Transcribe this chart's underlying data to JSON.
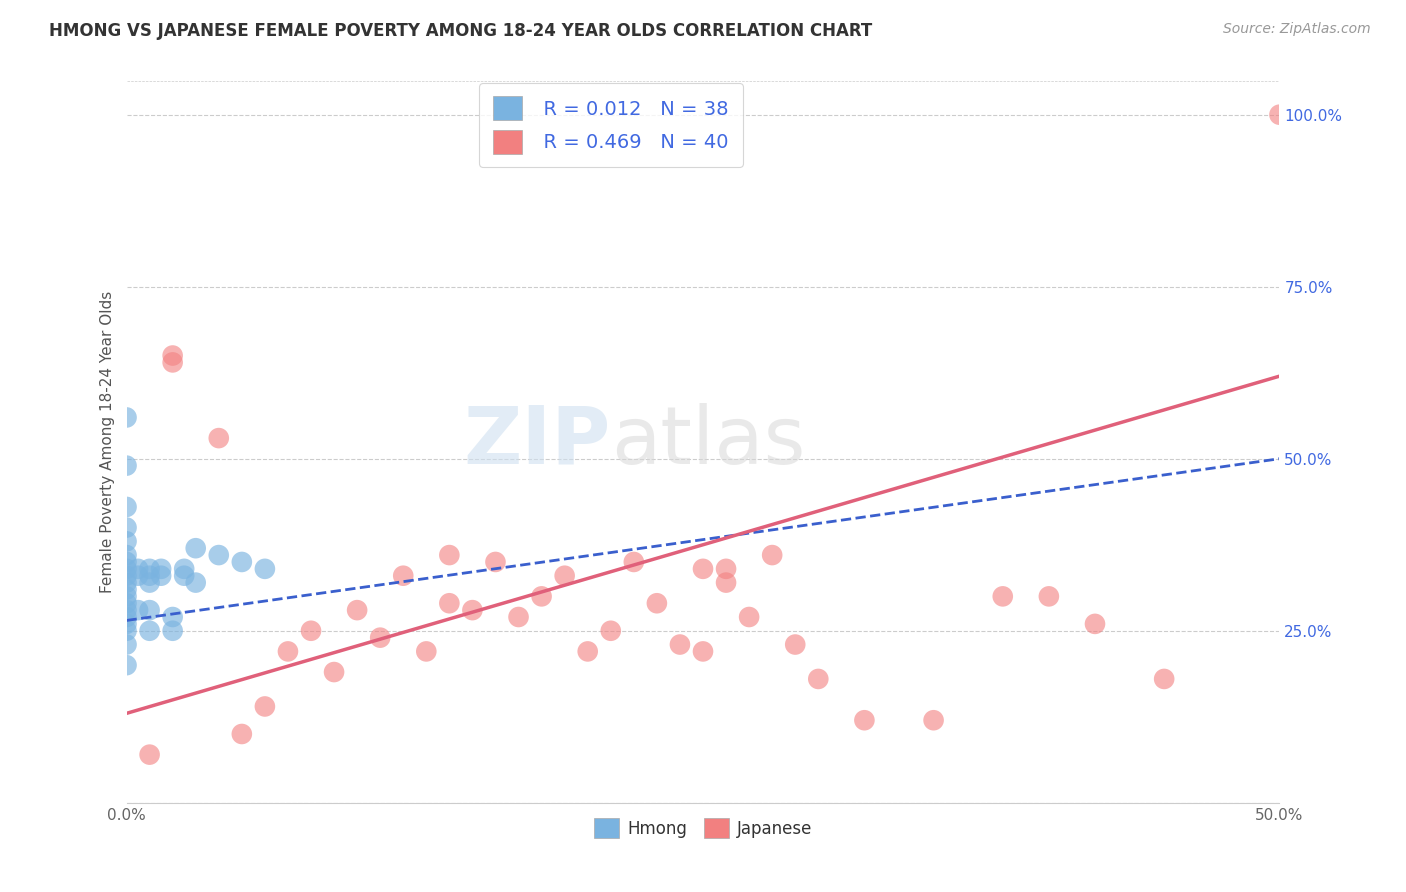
{
  "title": "HMONG VS JAPANESE FEMALE POVERTY AMONG 18-24 YEAR OLDS CORRELATION CHART",
  "source": "Source: ZipAtlas.com",
  "ylabel": "Female Poverty Among 18-24 Year Olds",
  "xmin": 0.0,
  "xmax": 0.5,
  "ymin": 0.0,
  "ymax": 1.05,
  "x_ticks": [
    0.0,
    0.1,
    0.2,
    0.3,
    0.4,
    0.5
  ],
  "x_tick_labels": [
    "0.0%",
    "",
    "",
    "",
    "",
    "50.0%"
  ],
  "y_ticks_right": [
    0.0,
    0.25,
    0.5,
    0.75,
    1.0
  ],
  "y_tick_labels_right": [
    "",
    "25.0%",
    "50.0%",
    "75.0%",
    "100.0%"
  ],
  "hmong_color": "#7ab3e0",
  "japanese_color": "#f28080",
  "hmong_line_color": "#3a5fcd",
  "japanese_line_color": "#e0607a",
  "hmong_x": [
    0.0,
    0.0,
    0.0,
    0.0,
    0.0,
    0.0,
    0.0,
    0.0,
    0.0,
    0.0,
    0.0,
    0.0,
    0.0,
    0.0,
    0.0,
    0.0,
    0.0,
    0.0,
    0.0,
    0.005,
    0.005,
    0.005,
    0.01,
    0.01,
    0.01,
    0.01,
    0.01,
    0.015,
    0.015,
    0.02,
    0.02,
    0.025,
    0.025,
    0.03,
    0.03,
    0.04,
    0.05,
    0.06
  ],
  "hmong_y": [
    0.56,
    0.49,
    0.43,
    0.4,
    0.38,
    0.36,
    0.35,
    0.34,
    0.33,
    0.32,
    0.31,
    0.3,
    0.29,
    0.28,
    0.27,
    0.26,
    0.25,
    0.23,
    0.2,
    0.34,
    0.33,
    0.28,
    0.34,
    0.33,
    0.32,
    0.28,
    0.25,
    0.34,
    0.33,
    0.27,
    0.25,
    0.34,
    0.33,
    0.37,
    0.32,
    0.36,
    0.35,
    0.34
  ],
  "japanese_x": [
    0.01,
    0.02,
    0.02,
    0.04,
    0.05,
    0.06,
    0.07,
    0.08,
    0.09,
    0.1,
    0.11,
    0.12,
    0.13,
    0.14,
    0.14,
    0.15,
    0.16,
    0.17,
    0.18,
    0.19,
    0.2,
    0.21,
    0.22,
    0.23,
    0.24,
    0.25,
    0.26,
    0.27,
    0.28,
    0.29,
    0.25,
    0.26,
    0.3,
    0.32,
    0.35,
    0.38,
    0.4,
    0.42,
    0.45,
    0.5
  ],
  "japanese_y": [
    0.07,
    0.65,
    0.64,
    0.53,
    0.1,
    0.14,
    0.22,
    0.25,
    0.19,
    0.28,
    0.24,
    0.33,
    0.22,
    0.36,
    0.29,
    0.28,
    0.35,
    0.27,
    0.3,
    0.33,
    0.22,
    0.25,
    0.35,
    0.29,
    0.23,
    0.22,
    0.34,
    0.27,
    0.36,
    0.23,
    0.34,
    0.32,
    0.18,
    0.12,
    0.12,
    0.3,
    0.3,
    0.26,
    0.18,
    1.0
  ],
  "hmong_line_x0": 0.0,
  "hmong_line_y0": 0.265,
  "hmong_line_x1": 0.5,
  "hmong_line_y1": 0.5,
  "japanese_line_x0": 0.0,
  "japanese_line_y0": 0.13,
  "japanese_line_x1": 0.5,
  "japanese_line_y1": 0.62
}
